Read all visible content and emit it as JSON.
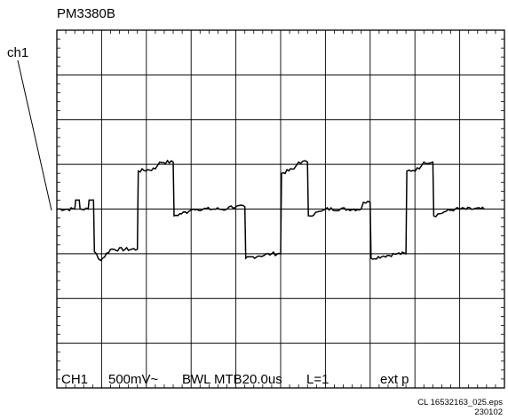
{
  "header": {
    "instrument": "PM3380B"
  },
  "channel_label": "ch1",
  "readout": {
    "channel": "CH1",
    "volts_per_div": "500mV~",
    "bandwidth": "BWL",
    "timebase": "MTB20.0us",
    "lines": "L=1",
    "trigger": "ext p"
  },
  "footer": {
    "file": "CL 16532163_025.eps",
    "date": "230102"
  },
  "colors": {
    "trace": "#000000",
    "grid": "#000000",
    "background": "#ffffff"
  },
  "chart_data": {
    "type": "line",
    "title": "PM3380B",
    "x_unit": "div",
    "y_unit": "div",
    "xlim": [
      0,
      10
    ],
    "ylim": [
      -4,
      4
    ],
    "grid": true,
    "x_divisions": 10,
    "y_divisions": 8,
    "series": [
      {
        "name": "ch1",
        "points": [
          [
            0.0,
            0.0
          ],
          [
            0.4,
            0.0
          ],
          [
            0.42,
            0.2
          ],
          [
            0.5,
            0.2
          ],
          [
            0.52,
            0.0
          ],
          [
            0.7,
            0.0
          ],
          [
            0.72,
            0.2
          ],
          [
            0.82,
            0.2
          ],
          [
            0.84,
            -0.95
          ],
          [
            0.98,
            -1.15
          ],
          [
            1.2,
            -0.9
          ],
          [
            1.8,
            -0.9
          ],
          [
            1.82,
            0.85
          ],
          [
            2.2,
            0.9
          ],
          [
            2.3,
            1.05
          ],
          [
            2.6,
            1.05
          ],
          [
            2.62,
            -0.15
          ],
          [
            2.95,
            -0.05
          ],
          [
            3.05,
            0.0
          ],
          [
            3.8,
            0.0
          ],
          [
            3.85,
            0.05
          ],
          [
            4.2,
            0.05
          ],
          [
            4.22,
            -1.1
          ],
          [
            4.5,
            -1.05
          ],
          [
            4.8,
            -1.0
          ],
          [
            5.0,
            -1.0
          ],
          [
            5.02,
            0.8
          ],
          [
            5.3,
            0.9
          ],
          [
            5.4,
            1.05
          ],
          [
            5.6,
            1.05
          ],
          [
            5.62,
            -0.15
          ],
          [
            5.9,
            -0.05
          ],
          [
            6.0,
            0.0
          ],
          [
            6.8,
            0.0
          ],
          [
            6.85,
            0.15
          ],
          [
            7.0,
            0.15
          ],
          [
            7.02,
            -1.1
          ],
          [
            7.3,
            -1.05
          ],
          [
            7.6,
            -1.0
          ],
          [
            7.8,
            -1.0
          ],
          [
            7.82,
            0.85
          ],
          [
            8.1,
            0.9
          ],
          [
            8.2,
            1.05
          ],
          [
            8.4,
            1.05
          ],
          [
            8.42,
            -0.15
          ],
          [
            8.7,
            -0.05
          ],
          [
            8.9,
            0.0
          ],
          [
            9.55,
            0.0
          ]
        ]
      }
    ]
  }
}
